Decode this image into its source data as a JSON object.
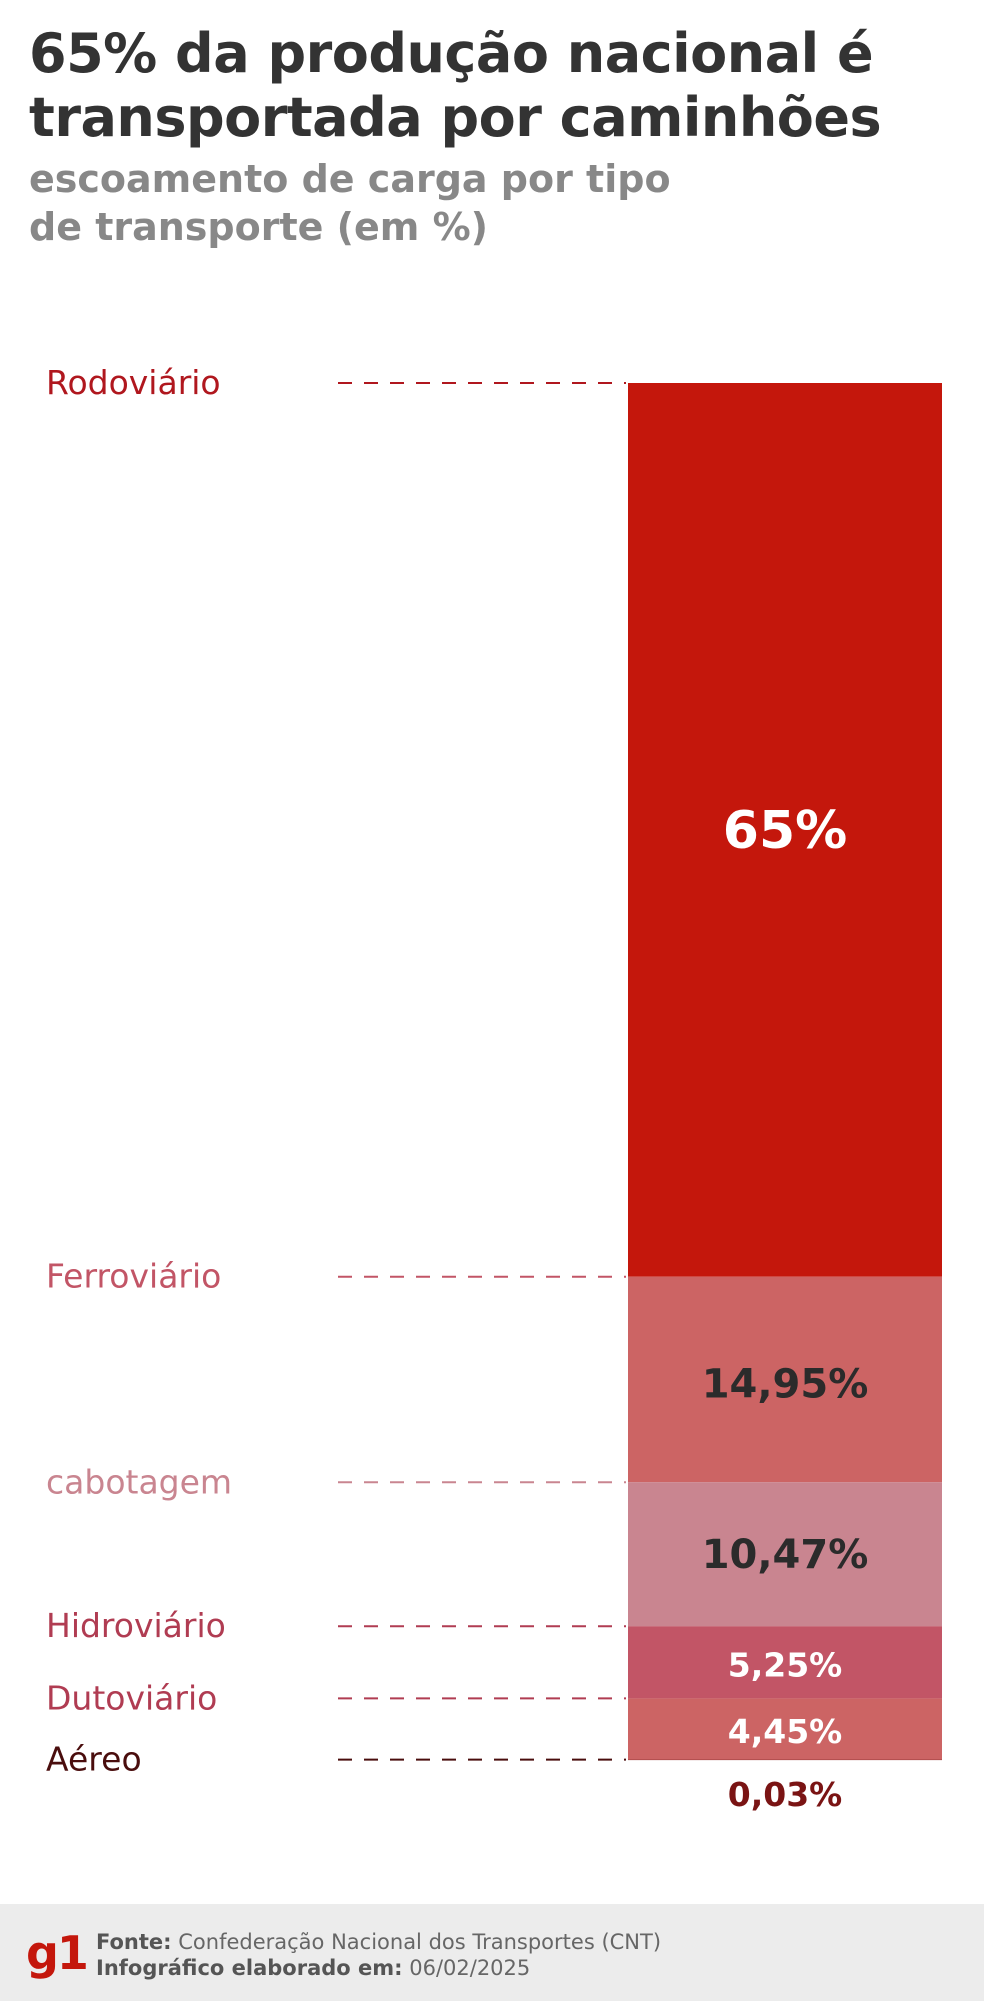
{
  "header": {
    "title": "65% da produção nacional é transportada por caminhões",
    "subtitle": "escoamento de carga por tipo de transporte (em %)"
  },
  "chart_data": {
    "type": "bar",
    "stacked": true,
    "title": "65% da produção nacional é transportada por caminhões",
    "subtitle": "escoamento de carga por tipo de transporte (em %)",
    "unit": "%",
    "categories": [
      "Rodoviário",
      "Ferroviário",
      "cabotagem",
      "Hidroviário",
      "Dutoviário",
      "Aéreo"
    ],
    "values": [
      65,
      14.95,
      10.47,
      5.25,
      4.45,
      0.03
    ],
    "value_labels": [
      "65%",
      "14,95%",
      "10,47%",
      "5,25%",
      "4,45%",
      "0,03%"
    ],
    "colors": [
      "#c4170c",
      "#cc6464",
      "#c98590",
      "#c25566",
      "#cc6464",
      "#8b1a1a"
    ],
    "category_label_colors": [
      "#b0171e",
      "#c25566",
      "#c98590",
      "#b03c52",
      "#b03c52",
      "#4a0d0d"
    ],
    "value_label_colors": [
      "#ffffff",
      "#2b2b2b",
      "#2b2b2b",
      "#ffffff",
      "#ffffff",
      "#7a1414"
    ],
    "legend": "none",
    "grid": false
  },
  "footer": {
    "logo": "g1",
    "source_label": "Fonte:",
    "source_value": "Confederação Nacional dos Transportes (CNT)",
    "date_label": "Infográfico elaborado em:",
    "date_value": "06/02/2025"
  }
}
